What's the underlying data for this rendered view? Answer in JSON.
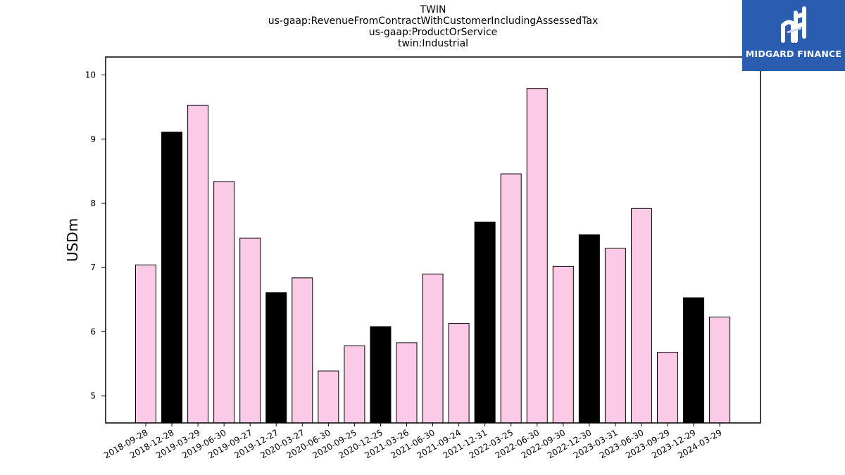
{
  "chart_data": {
    "type": "bar",
    "title_lines": [
      "TWIN",
      "us-gaap:RevenueFromContractWithCustomerIncludingAssessedTax",
      "us-gaap:ProductOrService",
      "twin:Industrial"
    ],
    "xlabel": "",
    "ylabel": "USDm",
    "ylim": [
      4.58,
      10.28
    ],
    "yticks": [
      5,
      6,
      7,
      8,
      9,
      10
    ],
    "grid": false,
    "legend": "none",
    "categories": [
      "2018-09-28",
      "2018-12-28",
      "2019-03-29",
      "2019-06-30",
      "2019-09-27",
      "2019-12-27",
      "2020-03-27",
      "2020-06-30",
      "2020-09-25",
      "2020-12-25",
      "2021-03-26",
      "2021-06-30",
      "2021-09-24",
      "2021-12-31",
      "2022-03-25",
      "2022-06-30",
      "2022-09-30",
      "2022-12-30",
      "2023-03-31",
      "2023-06-30",
      "2023-09-29",
      "2023-12-29",
      "2024-03-29"
    ],
    "values": [
      7.04,
      9.11,
      9.53,
      8.34,
      7.46,
      6.61,
      6.84,
      5.39,
      5.78,
      6.08,
      5.83,
      6.9,
      6.13,
      7.71,
      8.46,
      9.79,
      7.02,
      7.51,
      7.3,
      7.92,
      5.68,
      6.53,
      6.23
    ],
    "bar_colors": [
      "#fbcae6",
      "#000000",
      "#fbcae6",
      "#fbcae6",
      "#fbcae6",
      "#000000",
      "#fbcae6",
      "#fbcae6",
      "#fbcae6",
      "#000000",
      "#fbcae6",
      "#fbcae6",
      "#fbcae6",
      "#000000",
      "#fbcae6",
      "#fbcae6",
      "#fbcae6",
      "#000000",
      "#fbcae6",
      "#fbcae6",
      "#fbcae6",
      "#000000",
      "#fbcae6"
    ]
  },
  "logo": {
    "text": "MIDGARD FINANCE",
    "background": "#2a5db0"
  }
}
